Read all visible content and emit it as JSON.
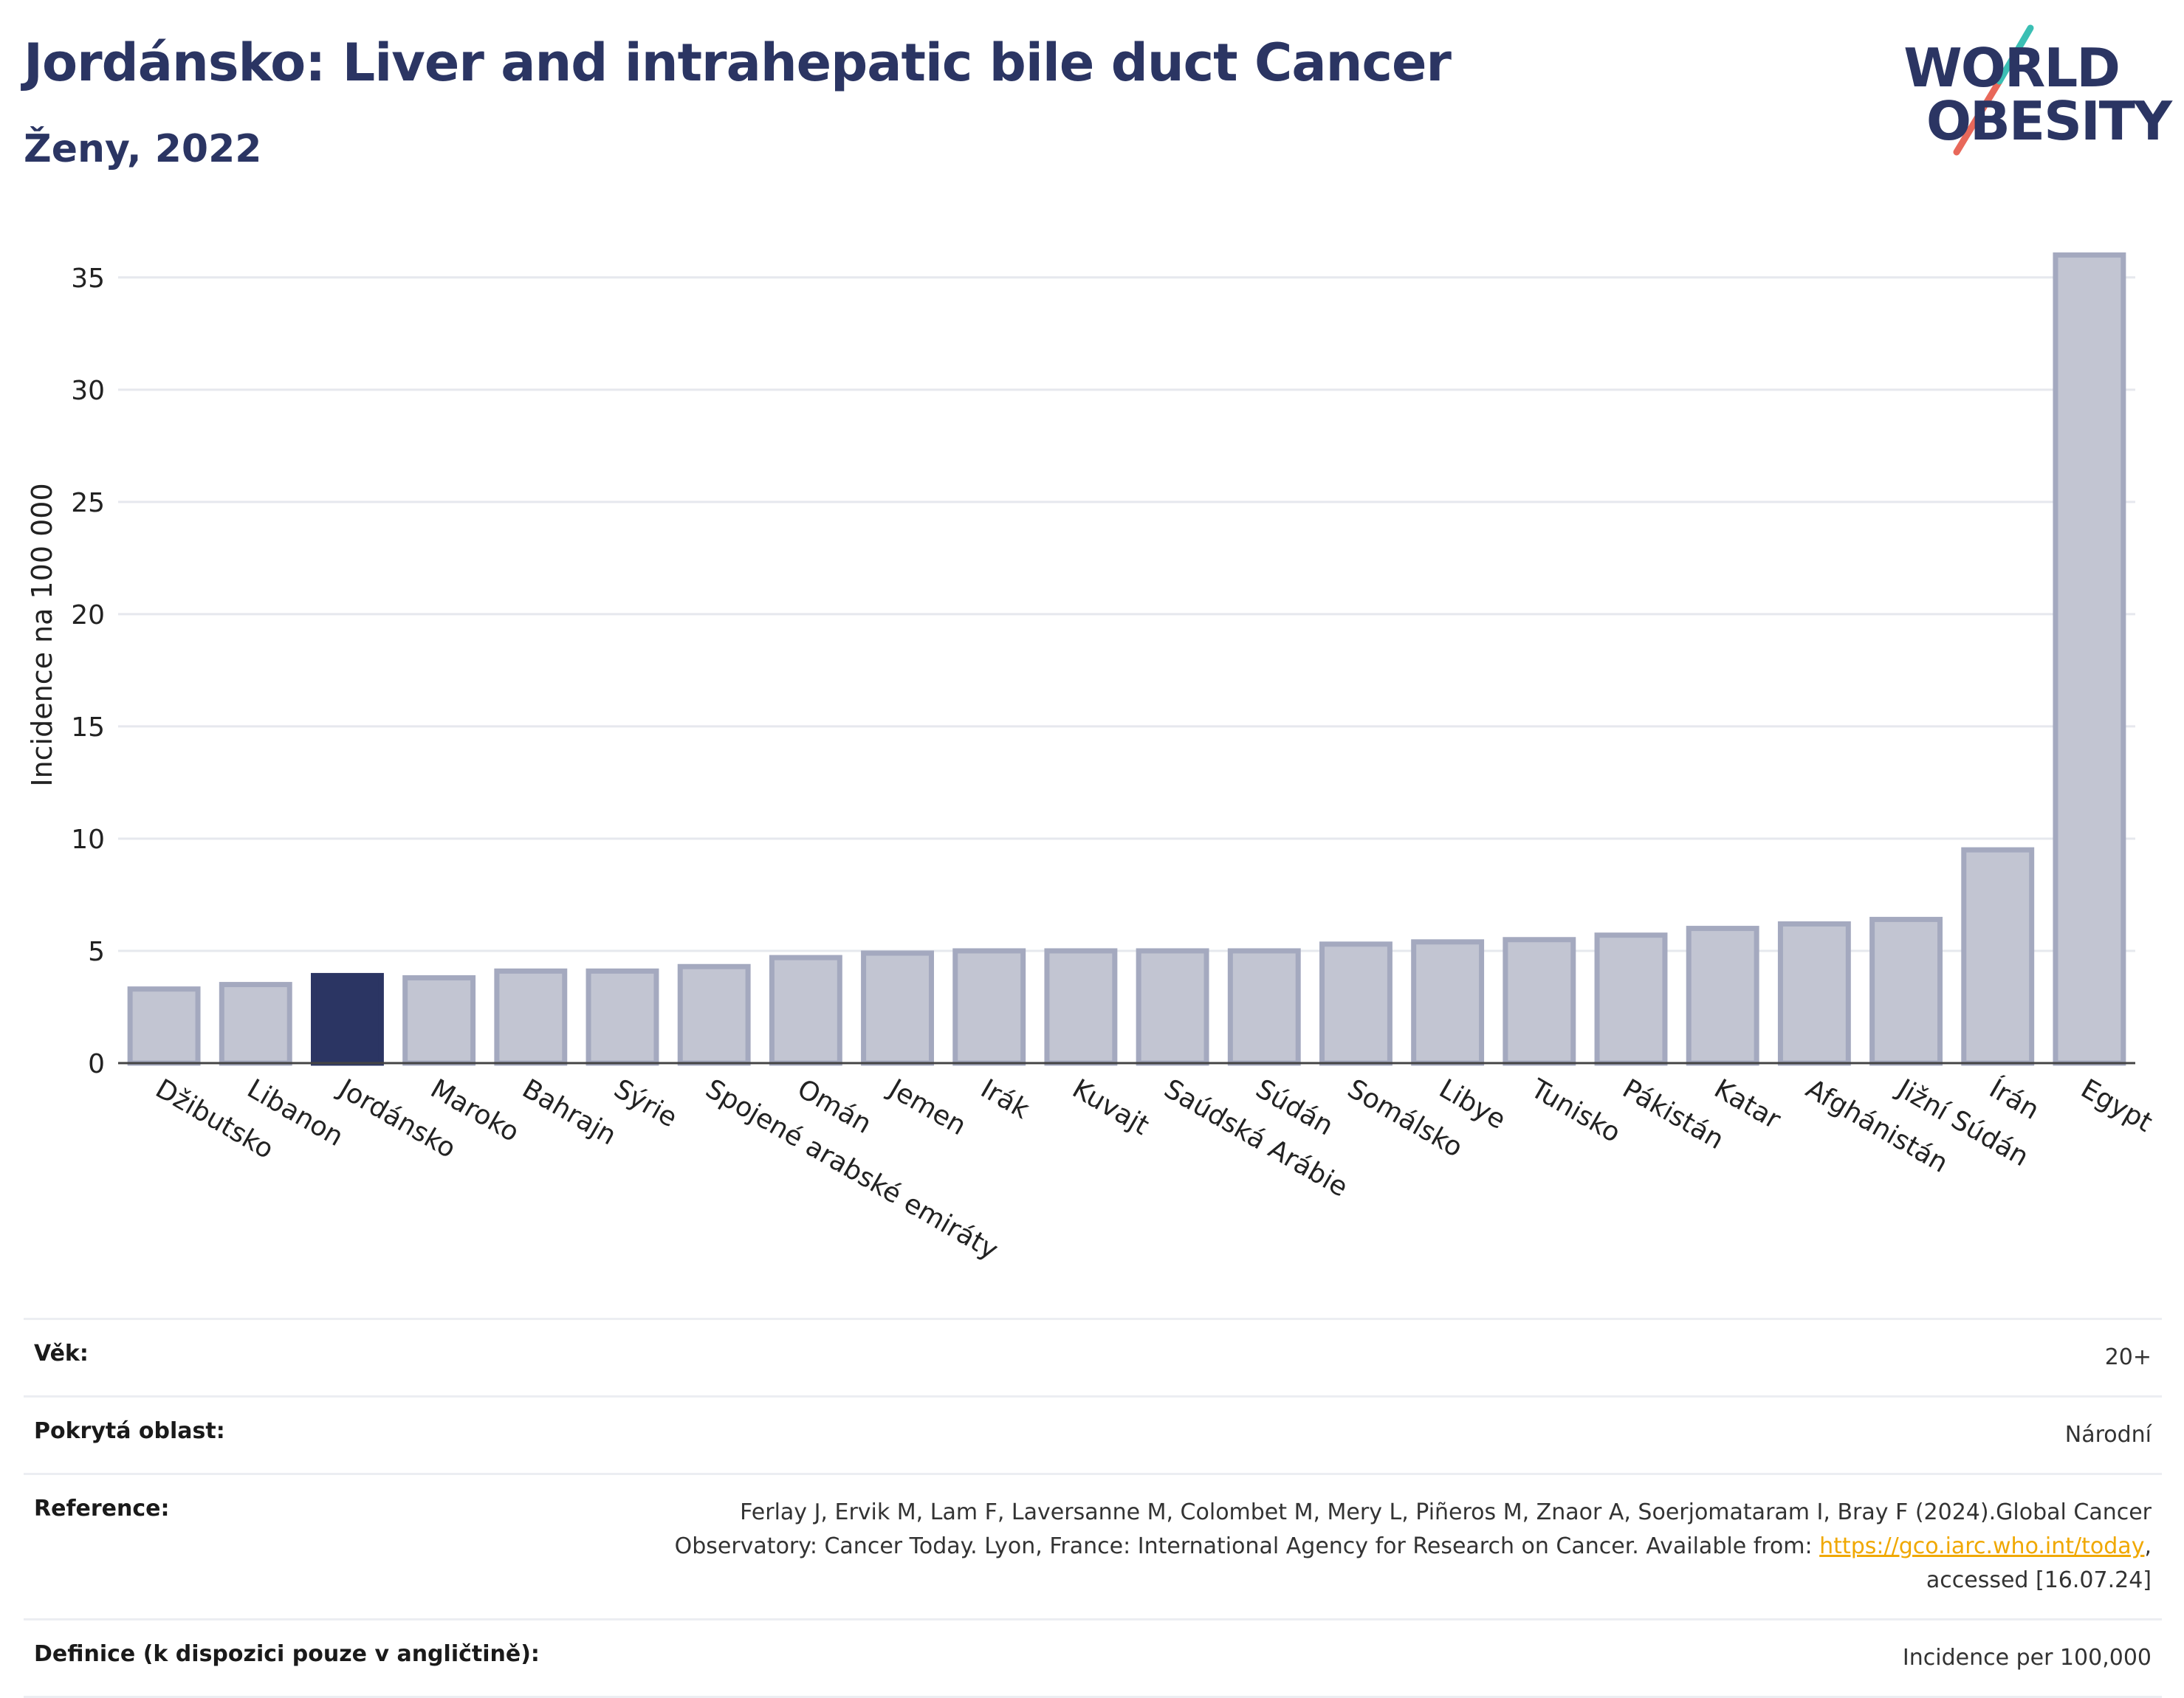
{
  "header": {
    "title": "Jordánsko: Liver and intrahepatic bile duct Cancer",
    "subtitle": "Ženy, 2022"
  },
  "logo": {
    "line1": "WORLD",
    "line2": "OBESITY"
  },
  "chart_data": {
    "type": "bar",
    "ylabel": "Incidence na 100 000",
    "xlabel": "",
    "ylim": [
      0,
      37
    ],
    "yticks": [
      0,
      5,
      10,
      15,
      20,
      25,
      30,
      35
    ],
    "grid": true,
    "highlight": "Jordánsko",
    "colors": {
      "bar": "#c2c5d2",
      "bar_edge": "#a4a9bf",
      "highlight": "#2b3563"
    },
    "categories": [
      "Džibutsko",
      "Libanon",
      "Jordánsko",
      "Maroko",
      "Bahrajn",
      "Sýrie",
      "Spojené arabské emiráty",
      "Omán",
      "Jemen",
      "Irák",
      "Kuvajt",
      "Saúdská Arábie",
      "Súdán",
      "Somálsko",
      "Libye",
      "Tunisko",
      "Pákistán",
      "Katar",
      "Afghánistán",
      "Jižní Súdán",
      "Írán",
      "Egypt"
    ],
    "values": [
      3.3,
      3.5,
      3.9,
      3.8,
      4.1,
      4.1,
      4.3,
      4.7,
      4.9,
      5.0,
      5.0,
      5.0,
      5.0,
      5.3,
      5.4,
      5.5,
      5.7,
      6.0,
      6.2,
      6.4,
      9.5,
      36.0
    ]
  },
  "meta": {
    "age_label": "Věk:",
    "age_value": "20+",
    "coverage_label": "Pokrytá oblast:",
    "coverage_value": "Národní",
    "reference_label": "Reference:",
    "reference_text": "Ferlay J, Ervik M, Lam F, Laversanne M, Colombet M, Mery L, Piñeros M, Znaor A, Soerjomataram I, Bray F (2024).Global Cancer Observatory: Cancer Today. Lyon, France: International Agency for Research on Cancer. Available from:",
    "reference_link": "https://gco.iarc.who.int/today",
    "reference_tail": ", accessed [16.07.24]",
    "definition_label": "Definice (k dispozici pouze v angličtině):",
    "definition_value": "Incidence per 100,000"
  }
}
